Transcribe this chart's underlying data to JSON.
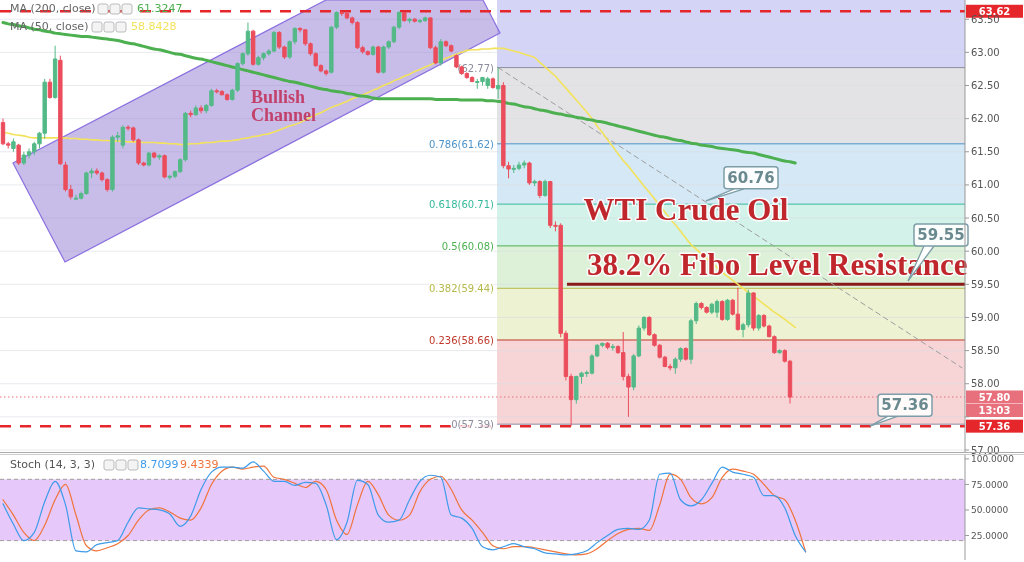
{
  "chart_data": [
    {
      "type": "candlestick",
      "title": "WTI Crude Oil",
      "categories": [
        null,
        null,
        null,
        null,
        null,
        null,
        null,
        null,
        null,
        null,
        null,
        null,
        null,
        null,
        null,
        null,
        null,
        null,
        null,
        null,
        null,
        null,
        null,
        null,
        null,
        null,
        null,
        null,
        null,
        null,
        null,
        null,
        null,
        null,
        null,
        null,
        null,
        null,
        null,
        null,
        null,
        null,
        null,
        null,
        null,
        null,
        null,
        null,
        null,
        null,
        null,
        null,
        null,
        null,
        null,
        null,
        null,
        null,
        null,
        null,
        null,
        null,
        null,
        null,
        null,
        null,
        null,
        null,
        null,
        null,
        null,
        null,
        null,
        null,
        null,
        null,
        null,
        null,
        null,
        null,
        null,
        null,
        null,
        null,
        null,
        null,
        null,
        null,
        null,
        null,
        null,
        null,
        null,
        null,
        null,
        null,
        null,
        null,
        null,
        null,
        null,
        null,
        null,
        null,
        null,
        null,
        null,
        null,
        null,
        null,
        null,
        null,
        null,
        null,
        null,
        null,
        null,
        null,
        null,
        null,
        null,
        null,
        null,
        null,
        null,
        null,
        null,
        null,
        null,
        null,
        null,
        null,
        null,
        null,
        null,
        null,
        null,
        null,
        null,
        null,
        null,
        null,
        null,
        null,
        null,
        null,
        null,
        null,
        null,
        null,
        null,
        null,
        null,
        null,
        null,
        null,
        null,
        null,
        null,
        null,
        null,
        null,
        null,
        null,
        null,
        null,
        null,
        null,
        null,
        null,
        null,
        null,
        null,
        null,
        null,
        null,
        null,
        null,
        null,
        null,
        null,
        null,
        null,
        null,
        null
      ],
      "ohlc": [
        [
          61.94,
          62.0,
          61.6,
          61.62
        ],
        [
          61.62,
          61.65,
          61.55,
          61.6
        ],
        [
          61.55,
          61.7,
          61.5,
          61.65
        ],
        [
          61.6,
          61.62,
          61.3,
          61.33
        ],
        [
          61.33,
          61.5,
          61.3,
          61.45
        ],
        [
          61.45,
          61.55,
          61.4,
          61.5
        ],
        [
          61.5,
          61.65,
          61.45,
          61.62
        ],
        [
          61.62,
          61.8,
          61.55,
          61.78
        ],
        [
          61.78,
          62.6,
          61.7,
          62.55
        ],
        [
          62.55,
          62.6,
          62.3,
          62.32
        ],
        [
          62.32,
          63.1,
          62.3,
          62.9
        ],
        [
          62.88,
          62.95,
          61.3,
          61.32
        ],
        [
          61.3,
          61.35,
          60.9,
          60.93
        ],
        [
          60.93,
          61.0,
          60.78,
          60.82
        ],
        [
          60.8,
          60.85,
          60.77,
          60.8
        ],
        [
          60.8,
          60.9,
          60.78,
          60.87
        ],
        [
          60.87,
          61.2,
          60.85,
          61.18
        ],
        [
          61.18,
          61.25,
          61.1,
          61.21
        ],
        [
          61.21,
          61.25,
          61.15,
          61.18
        ],
        [
          61.18,
          61.2,
          61.05,
          61.08
        ],
        [
          61.08,
          61.1,
          60.9,
          60.93
        ],
        [
          60.93,
          61.75,
          60.9,
          61.72
        ],
        [
          61.72,
          61.8,
          61.65,
          61.74
        ],
        [
          61.6,
          61.9,
          61.55,
          61.87
        ],
        [
          61.87,
          61.9,
          61.82,
          61.86
        ],
        [
          61.86,
          61.88,
          61.65,
          61.68
        ],
        [
          61.68,
          61.7,
          61.3,
          61.33
        ],
        [
          61.33,
          61.35,
          61.28,
          61.3
        ],
        [
          61.3,
          61.5,
          61.28,
          61.48
        ],
        [
          61.48,
          61.5,
          61.4,
          61.42
        ],
        [
          61.42,
          61.46,
          61.38,
          61.44
        ],
        [
          61.44,
          61.46,
          61.1,
          61.12
        ],
        [
          61.12,
          61.15,
          61.08,
          61.13
        ],
        [
          61.13,
          61.22,
          61.1,
          61.2
        ],
        [
          61.2,
          61.4,
          61.18,
          61.38
        ],
        [
          61.38,
          62.1,
          61.35,
          62.08
        ],
        [
          62.08,
          62.12,
          62.02,
          62.06
        ],
        [
          62.06,
          62.2,
          62.04,
          62.16
        ],
        [
          62.16,
          62.2,
          62.08,
          62.12
        ],
        [
          62.12,
          62.22,
          62.08,
          62.2
        ],
        [
          62.2,
          62.45,
          62.18,
          62.42
        ],
        [
          62.42,
          62.45,
          62.38,
          62.41
        ],
        [
          62.41,
          62.43,
          62.35,
          62.36
        ],
        [
          62.36,
          62.38,
          62.27,
          62.29
        ],
        [
          62.29,
          62.45,
          62.27,
          62.43
        ],
        [
          62.43,
          62.85,
          62.4,
          62.83
        ],
        [
          62.83,
          63.0,
          62.8,
          62.98
        ],
        [
          62.98,
          63.45,
          62.95,
          63.32
        ],
        [
          63.32,
          63.34,
          62.8,
          62.82
        ],
        [
          62.82,
          62.95,
          62.8,
          62.92
        ],
        [
          62.92,
          63.0,
          62.88,
          62.98
        ],
        [
          62.98,
          63.05,
          62.95,
          63.02
        ],
        [
          63.02,
          63.32,
          63.0,
          63.3
        ],
        [
          63.3,
          63.32,
          63.05,
          63.08
        ],
        [
          63.08,
          63.1,
          62.9,
          62.93
        ],
        [
          62.93,
          63.18,
          62.9,
          63.16
        ],
        [
          63.16,
          63.38,
          63.12,
          63.36
        ],
        [
          63.36,
          63.38,
          63.3,
          63.34
        ],
        [
          63.34,
          63.35,
          63.1,
          63.13
        ],
        [
          63.13,
          63.15,
          62.95,
          62.98
        ],
        [
          62.98,
          63.0,
          62.78,
          62.8
        ],
        [
          62.8,
          62.82,
          62.7,
          62.72
        ],
        [
          62.72,
          62.74,
          62.65,
          62.68
        ],
        [
          62.7,
          63.4,
          62.68,
          63.38
        ],
        [
          63.38,
          63.62,
          63.35,
          63.6
        ],
        [
          63.6,
          63.62,
          63.55,
          63.59
        ],
        [
          63.59,
          63.61,
          63.5,
          63.52
        ],
        [
          63.52,
          63.54,
          63.42,
          63.45
        ],
        [
          63.45,
          63.47,
          63.05,
          63.07
        ],
        [
          63.07,
          63.1,
          62.98,
          63.01
        ],
        [
          63.01,
          63.03,
          62.95,
          62.97
        ],
        [
          62.97,
          63.1,
          62.95,
          63.08
        ],
        [
          63.08,
          63.1,
          62.68,
          62.7
        ],
        [
          62.7,
          63.1,
          62.68,
          63.08
        ],
        [
          63.08,
          63.18,
          63.05,
          63.16
        ],
        [
          63.16,
          63.4,
          63.14,
          63.38
        ],
        [
          63.38,
          63.62,
          63.35,
          63.6
        ],
        [
          63.6,
          63.61,
          63.46,
          63.48
        ],
        [
          63.48,
          63.52,
          63.44,
          63.5
        ],
        [
          63.5,
          63.52,
          63.45,
          63.47
        ],
        [
          63.47,
          63.5,
          63.44,
          63.48
        ],
        [
          63.48,
          63.54,
          63.46,
          63.52
        ],
        [
          63.52,
          63.53,
          63.05,
          63.07
        ],
        [
          63.07,
          63.1,
          62.82,
          62.84
        ],
        [
          62.84,
          63.2,
          62.8,
          63.16
        ],
        [
          63.16,
          63.18,
          63.08,
          63.1
        ],
        [
          63.1,
          63.12,
          63.0,
          63.02
        ],
        [
          62.95,
          62.97,
          62.76,
          62.78
        ],
        [
          62.78,
          62.8,
          62.66,
          62.68
        ],
        [
          62.68,
          62.7,
          62.6,
          62.62
        ],
        [
          62.62,
          62.64,
          62.55,
          62.56
        ],
        [
          62.56,
          62.6,
          62.45,
          62.56
        ],
        [
          62.56,
          62.63,
          62.5,
          62.62
        ],
        [
          62.5,
          62.63,
          62.45,
          62.6
        ],
        [
          62.6,
          62.62,
          62.45,
          62.47
        ],
        [
          62.45,
          62.77,
          62.3,
          62.5
        ],
        [
          62.5,
          62.55,
          61.25,
          61.29
        ],
        [
          61.29,
          61.35,
          61.1,
          61.24
        ],
        [
          61.24,
          61.3,
          61.18,
          61.25
        ],
        [
          61.25,
          61.35,
          61.22,
          61.3
        ],
        [
          61.3,
          61.37,
          61.25,
          61.33
        ],
        [
          61.33,
          61.35,
          61.0,
          61.03
        ],
        [
          61.03,
          61.08,
          60.98,
          61.05
        ],
        [
          61.05,
          61.07,
          60.8,
          60.84
        ],
        [
          60.84,
          61.08,
          60.82,
          61.05
        ],
        [
          61.05,
          61.06,
          60.35,
          60.39
        ],
        [
          60.39,
          60.45,
          60.3,
          60.38
        ],
        [
          60.39,
          60.42,
          58.7,
          58.76
        ],
        [
          58.76,
          58.8,
          58.05,
          58.11
        ],
        [
          58.11,
          58.15,
          57.36,
          57.76
        ],
        [
          57.76,
          58.12,
          57.7,
          58.11
        ],
        [
          58.11,
          58.18,
          58.0,
          58.16
        ],
        [
          58.16,
          58.2,
          58.1,
          58.17
        ],
        [
          58.16,
          58.45,
          58.14,
          58.42
        ],
        [
          58.42,
          58.6,
          58.4,
          58.58
        ],
        [
          58.58,
          58.62,
          58.55,
          58.61
        ],
        [
          58.61,
          58.63,
          58.52,
          58.55
        ],
        [
          58.55,
          58.6,
          58.5,
          58.56
        ],
        [
          58.56,
          58.58,
          58.45,
          58.47
        ],
        [
          58.47,
          58.78,
          58.05,
          58.11
        ],
        [
          58.11,
          58.15,
          57.5,
          57.95
        ],
        [
          57.95,
          58.45,
          57.9,
          58.42
        ],
        [
          58.42,
          58.88,
          58.4,
          58.84
        ],
        [
          58.84,
          59.02,
          58.8,
          59.0
        ],
        [
          59.0,
          59.02,
          58.72,
          58.74
        ],
        [
          58.74,
          58.76,
          58.56,
          58.58
        ],
        [
          58.58,
          58.6,
          58.38,
          58.4
        ],
        [
          58.4,
          58.42,
          58.25,
          58.26
        ],
        [
          58.26,
          58.3,
          58.2,
          58.24
        ],
        [
          58.24,
          58.4,
          58.15,
          58.37
        ],
        [
          58.37,
          58.55,
          58.33,
          58.53
        ],
        [
          58.53,
          58.55,
          58.35,
          58.37
        ],
        [
          58.37,
          58.98,
          58.3,
          58.95
        ],
        [
          58.95,
          59.24,
          58.9,
          59.21
        ],
        [
          59.21,
          59.23,
          59.12,
          59.15
        ],
        [
          59.15,
          59.17,
          59.06,
          59.08
        ],
        [
          59.08,
          59.22,
          59.05,
          59.2
        ],
        [
          59.08,
          59.27,
          59.0,
          59.24
        ],
        [
          59.24,
          59.26,
          58.95,
          58.97
        ],
        [
          58.97,
          59.28,
          58.95,
          59.26
        ],
        [
          59.26,
          59.28,
          59.03,
          59.05
        ],
        [
          59.05,
          59.45,
          58.8,
          58.82
        ],
        [
          58.82,
          58.92,
          58.7,
          58.89
        ],
        [
          58.89,
          59.42,
          58.85,
          59.37
        ],
        [
          59.37,
          59.38,
          58.8,
          58.84
        ],
        [
          58.84,
          59.05,
          58.8,
          59.03
        ],
        [
          59.03,
          59.05,
          58.85,
          58.87
        ],
        [
          58.87,
          58.89,
          58.7,
          58.71
        ],
        [
          58.71,
          58.73,
          58.45,
          58.47
        ],
        [
          58.47,
          58.52,
          58.45,
          58.5
        ],
        [
          58.5,
          58.52,
          58.32,
          58.34
        ],
        [
          58.34,
          58.36,
          57.7,
          57.8
        ],
        null,
        null,
        null,
        null,
        null,
        null,
        null,
        null,
        null,
        null,
        null,
        null,
        null,
        null,
        null,
        null,
        null,
        null,
        null,
        null,
        null,
        null,
        null,
        null,
        null,
        null,
        null,
        null,
        null,
        null,
        null,
        null,
        null
      ],
      "series": [
        {
          "type": "line",
          "color": "#4caf50",
          "values": [
            63.45,
            63.43,
            63.42,
            63.4,
            63.39,
            63.37,
            63.35,
            63.34,
            63.32,
            63.31,
            63.29,
            63.28,
            63.27,
            63.26,
            63.25,
            63.24,
            63.24,
            63.23,
            63.22,
            63.21,
            63.2,
            63.19,
            63.18,
            63.16,
            63.14,
            63.13,
            63.11,
            63.09,
            63.07,
            63.05,
            63.04,
            63.02,
            63.0,
            62.98,
            62.97,
            62.95,
            62.93,
            62.91,
            62.9,
            62.88,
            62.86,
            62.84,
            62.82,
            62.8,
            62.78,
            62.76,
            62.74,
            62.72,
            62.7,
            62.68,
            62.66,
            62.64,
            62.62,
            62.6,
            62.58,
            62.56,
            62.55,
            62.53,
            62.51,
            62.49,
            62.47,
            62.45,
            62.44,
            62.42,
            62.41,
            62.4,
            62.38,
            62.37,
            62.35,
            62.34,
            62.33,
            62.31,
            62.3,
            62.3,
            62.3,
            62.3,
            62.3,
            62.3,
            62.3,
            62.3,
            62.3,
            62.3,
            62.3,
            62.29,
            62.29,
            62.29,
            62.29,
            62.29,
            62.28,
            62.28,
            62.28,
            62.28,
            62.28,
            62.27,
            62.27,
            62.26,
            62.25,
            62.23,
            62.22,
            62.2,
            62.18,
            62.17,
            62.15,
            62.13,
            62.12,
            62.1,
            62.08,
            62.07,
            62.05,
            62.04,
            62.02,
            62.01,
            61.99,
            61.98,
            61.96,
            61.95,
            61.93,
            61.91,
            61.89,
            61.87,
            61.85,
            61.83,
            61.81,
            61.79,
            61.77,
            61.75,
            61.73,
            61.72,
            61.7,
            61.68,
            61.67,
            61.65,
            61.63,
            61.62,
            61.6,
            61.59,
            61.58,
            61.56,
            61.55,
            61.54,
            61.53,
            61.52,
            61.5,
            61.49,
            61.48,
            61.46,
            61.44,
            61.42,
            61.4,
            61.38,
            61.36,
            61.35,
            61.33,
            null,
            null,
            null,
            null,
            null,
            null,
            null,
            null,
            null,
            null,
            null,
            null,
            null,
            null,
            null,
            null,
            null,
            null,
            null,
            null,
            null,
            null,
            null,
            null,
            null,
            null,
            null,
            null,
            null,
            null,
            null,
            null
          ]
        },
        {
          "type": "line",
          "color": "#f3e25b",
          "values": [
            61.79,
            61.78,
            61.76,
            61.75,
            61.74,
            61.72,
            61.71,
            61.71,
            61.71,
            61.71,
            61.71,
            61.71,
            61.71,
            61.7,
            61.7,
            61.69,
            61.69,
            61.68,
            61.68,
            61.67,
            61.67,
            61.66,
            61.66,
            61.66,
            61.65,
            61.65,
            61.65,
            61.64,
            61.64,
            61.64,
            61.63,
            61.63,
            61.62,
            61.62,
            61.61,
            61.61,
            61.62,
            61.62,
            61.63,
            61.64,
            61.64,
            61.65,
            61.66,
            61.66,
            61.67,
            61.68,
            61.7,
            61.71,
            61.73,
            61.74,
            61.76,
            61.77,
            61.8,
            61.83,
            61.86,
            61.89,
            61.91,
            61.94,
            61.98,
            62.02,
            62.06,
            62.09,
            62.13,
            62.17,
            62.2,
            62.23,
            62.26,
            62.3,
            62.33,
            62.36,
            62.39,
            62.43,
            62.46,
            62.5,
            62.53,
            62.57,
            62.6,
            62.64,
            62.67,
            62.71,
            62.74,
            62.78,
            62.81,
            62.85,
            62.88,
            62.91,
            62.94,
            62.97,
            63.0,
            63.03,
            63.04,
            63.04,
            63.05,
            63.05,
            63.06,
            63.06,
            63.06,
            63.04,
            63.02,
            63.0,
            62.97,
            62.95,
            62.92,
            62.85,
            62.78,
            62.71,
            62.64,
            62.55,
            62.46,
            62.37,
            62.28,
            62.19,
            62.1,
            62.0,
            61.89,
            61.79,
            61.68,
            61.58,
            61.47,
            61.37,
            61.28,
            61.18,
            61.08,
            60.98,
            60.89,
            60.79,
            60.69,
            60.59,
            60.49,
            60.4,
            60.3,
            60.2,
            60.1,
            60.03,
            59.96,
            59.89,
            59.82,
            59.75,
            59.68,
            59.62,
            59.56,
            59.5,
            59.44,
            59.38,
            59.32,
            59.26,
            59.2,
            59.14,
            59.08,
            59.03,
            58.97,
            58.91,
            58.85,
            null,
            null,
            null,
            null,
            null,
            null,
            null,
            null,
            null,
            null,
            null,
            null,
            null,
            null,
            null,
            null,
            null,
            null,
            null,
            null,
            null,
            null,
            null,
            null,
            null,
            null,
            null,
            null,
            null,
            null,
            null,
            null
          ]
        },
        {
          "type": "line",
          "color": "#9e9e9e",
          "line_style": "dashed",
          "values": [
            null,
            null,
            null,
            null,
            null,
            null,
            null,
            null,
            null,
            null,
            null,
            null,
            null,
            null,
            null,
            null,
            null,
            null,
            null,
            null,
            null,
            null,
            null,
            null,
            null,
            null,
            null,
            null,
            null,
            null,
            null,
            null,
            null,
            null,
            null,
            null,
            null,
            null,
            null,
            null,
            null,
            null,
            null,
            null,
            null,
            null,
            null,
            null,
            null,
            null,
            null,
            null,
            null,
            null,
            null,
            null,
            null,
            null,
            null,
            null,
            null,
            null,
            null,
            null,
            null,
            null,
            null,
            null,
            null,
            null,
            null,
            null,
            null,
            null,
            null,
            null,
            null,
            null,
            null,
            null,
            null,
            null,
            null,
            null,
            null,
            null,
            null,
            null,
            null,
            null,
            null,
            null,
            null,
            null,
            null,
            62.77,
            null,
            null,
            null,
            null,
            null,
            null,
            null,
            null,
            null,
            null,
            null,
            null,
            null,
            null,
            null,
            null,
            null,
            null,
            null,
            null,
            null,
            null,
            null,
            null,
            null,
            null,
            null,
            null,
            null,
            null,
            null,
            null,
            null,
            null,
            null,
            null,
            null,
            null,
            null,
            null,
            null,
            null,
            null,
            null,
            null,
            null,
            null,
            null,
            null,
            null,
            null,
            null,
            null,
            null,
            null,
            null,
            null,
            null,
            null,
            null,
            null,
            null,
            null,
            null,
            null,
            null,
            null,
            null,
            null,
            null,
            null,
            null,
            null,
            null,
            null,
            null,
            null,
            null,
            null,
            null,
            null,
            null,
            null,
            null,
            null,
            null,
            null,
            null,
            58.24
          ]
        }
      ],
      "ylim": [
        56.97,
        63.79
      ],
      "yticks": [
        {
          "value": 57,
          "label": "57.00"
        },
        {
          "value": 57.5,
          "label": null
        },
        {
          "value": 58,
          "label": "58.00"
        },
        {
          "value": 58.5,
          "label": "58.50"
        },
        {
          "value": 59,
          "label": "59.00"
        },
        {
          "value": 59.5,
          "label": "59.50"
        },
        {
          "value": 60,
          "label": "60.00"
        },
        {
          "value": 60.5,
          "label": "60.50"
        },
        {
          "value": 61,
          "label": "61.00"
        },
        {
          "value": 61.5,
          "label": "61.50"
        },
        {
          "value": 62,
          "label": "62.00"
        },
        {
          "value": 62.5,
          "label": "62.50"
        },
        {
          "value": 63,
          "label": "63.00"
        },
        {
          "value": 63.5,
          "label": "63.50"
        }
      ],
      "grid": "y",
      "bands": [
        {
          "axis": "y",
          "from": 62.77,
          "to": 63.79,
          "color": "#d4d4f7"
        },
        {
          "axis": "y",
          "from": 61.62,
          "to": 62.77,
          "color": "#e3e3e6"
        },
        {
          "axis": "y",
          "from": 60.71,
          "to": 61.62,
          "color": "#d5e8f5"
        },
        {
          "axis": "y",
          "from": 60.08,
          "to": 60.71,
          "color": "#d3f2ea"
        },
        {
          "axis": "y",
          "from": 59.44,
          "to": 60.08,
          "color": "#dcf1d8"
        },
        {
          "axis": "y",
          "from": 58.66,
          "to": 59.44,
          "color": "#edf2d2"
        },
        {
          "axis": "y",
          "from": 57.39,
          "to": 58.66,
          "color": "#f7d5d7"
        }
      ],
      "ref_lines": [
        {
          "axis": "y",
          "value": 63.62,
          "label": "63.62",
          "color": "#e5262b",
          "line_style": "dashed"
        },
        {
          "axis": "y",
          "value": 57.36,
          "label": "57.36",
          "color": "#e5262b",
          "line_style": "dashed"
        },
        {
          "axis": "y",
          "value": 57.8,
          "label": "57.80",
          "color": "#e8707c",
          "line_style": "dotted"
        },
        {
          "axis": "y",
          "value": 62.77,
          "label": "(62.77)",
          "color": "#8c8c9e",
          "line_style": "solid"
        },
        {
          "axis": "y",
          "value": 61.62,
          "label": "0.786(61.62)",
          "color": "#4d93c9",
          "line_style": "solid"
        },
        {
          "axis": "y",
          "value": 60.71,
          "label": "0.618(60.71)",
          "color": "#35b99b",
          "line_style": "solid"
        },
        {
          "axis": "y",
          "value": 60.08,
          "label": "0.5(60.08)",
          "color": "#4caf50",
          "line_style": "solid"
        },
        {
          "axis": "y",
          "value": 59.44,
          "label": "0.382(59.44)",
          "color": "#b5b84a",
          "line_style": "solid"
        },
        {
          "axis": "y",
          "value": 58.66,
          "label": "0.236(58.66)",
          "color": "#c0392b",
          "line_style": "solid"
        },
        {
          "axis": "y",
          "value": 57.39,
          "label": "0(57.39)",
          "color": "#8c8c9e",
          "line_style": "solid"
        },
        {
          "axis": "y",
          "value": 59.5,
          "label": null,
          "color": "#8b1a1a",
          "line_style": "solid"
        }
      ],
      "annotations": [
        "MA (200, close)",
        "61.3247",
        "MA (50, close)",
        "58.8428",
        "Bullish Channel",
        {
          "text": "60.76",
          "y": 60.76
        },
        {
          "text": "38.2% Fibo Level Resistance",
          "y": 59.5
        },
        {
          "text": "59.55",
          "y": 59.55
        },
        {
          "text": "57.36",
          "y": 57.36
        },
        "13:03"
      ]
    },
    {
      "type": "line",
      "title": "Stoch (14, 3, 3)",
      "categories": [
        null,
        null,
        null,
        null,
        null,
        null,
        null,
        null,
        null,
        null,
        null,
        null,
        null,
        null,
        null,
        null,
        null,
        null,
        null,
        null,
        null,
        null,
        null,
        null,
        null,
        null,
        null,
        null,
        null,
        null,
        null,
        null,
        null,
        null,
        null,
        null,
        null,
        null,
        null,
        null,
        null,
        null,
        null,
        null,
        null,
        null,
        null,
        null,
        null,
        null,
        null,
        null,
        null,
        null,
        null,
        null,
        null,
        null,
        null,
        null,
        null,
        null,
        null,
        null,
        null,
        null,
        null,
        null,
        null,
        null,
        null,
        null,
        null,
        null,
        null,
        null,
        null,
        null,
        null,
        null,
        null,
        null,
        null,
        null,
        null,
        null,
        null,
        null,
        null,
        null,
        null,
        null,
        null
      ],
      "series": [
        {
          "color": "#3d9be9",
          "values": [
            56,
            36,
            20,
            28,
            58,
            78,
            55,
            10,
            9,
            16,
            18,
            20,
            38,
            52,
            51,
            50,
            46,
            34,
            44,
            70,
            87,
            92,
            92,
            91,
            97,
            88,
            78,
            78,
            74,
            77,
            76,
            55,
            21,
            38,
            79,
            75,
            45,
            38,
            40,
            60,
            78,
            84,
            82,
            45,
            42,
            32,
            14,
            11,
            14,
            17,
            14,
            12,
            8,
            7,
            6,
            7,
            10,
            18,
            25,
            31,
            32,
            31,
            40,
            85,
            86,
            60,
            54,
            60,
            76,
            92,
            87,
            85,
            82,
            64,
            64,
            52,
            25,
            9,
            null,
            null,
            null,
            null,
            null,
            null,
            null,
            null,
            null,
            null,
            null,
            null,
            null,
            null,
            null
          ]
        },
        {
          "color": "#f0743b",
          "values": [
            60,
            45,
            28,
            20,
            35,
            60,
            75,
            45,
            15,
            10,
            13,
            17,
            25,
            40,
            50,
            52,
            48,
            42,
            40,
            52,
            75,
            88,
            92,
            90,
            92,
            93,
            82,
            80,
            76,
            72,
            78,
            70,
            40,
            26,
            55,
            78,
            65,
            45,
            40,
            45,
            68,
            80,
            83,
            70,
            50,
            40,
            28,
            15,
            12,
            14,
            14,
            13,
            11,
            9,
            7,
            6,
            7,
            12,
            20,
            27,
            31,
            32,
            30,
            55,
            85,
            80,
            62,
            56,
            62,
            82,
            90,
            88,
            85,
            75,
            64,
            60,
            40,
            9,
            null,
            null,
            null,
            null,
            null,
            null,
            null,
            null,
            null,
            null,
            null,
            null,
            null,
            null,
            null
          ]
        }
      ],
      "ylim": [
        1,
        104.8
      ],
      "yticks": [
        {
          "value": 25,
          "label": "25.0000"
        },
        {
          "value": 50,
          "label": "50.0000"
        },
        {
          "value": 75,
          "label": "75.0000"
        },
        {
          "value": 100,
          "label": "100.0000"
        }
      ],
      "bands": [
        {
          "axis": "y",
          "from": 20,
          "to": 80,
          "color": "#e6c8fa"
        }
      ],
      "ref_lines": [
        {
          "axis": "y",
          "value": 80,
          "label": null,
          "color": "#9e9e9e",
          "line_style": "dashed"
        },
        {
          "axis": "y",
          "value": 20,
          "label": null,
          "color": "#9e9e9e",
          "line_style": "dashed"
        }
      ],
      "annotations": [
        "8.7099",
        "9.4339"
      ]
    }
  ]
}
